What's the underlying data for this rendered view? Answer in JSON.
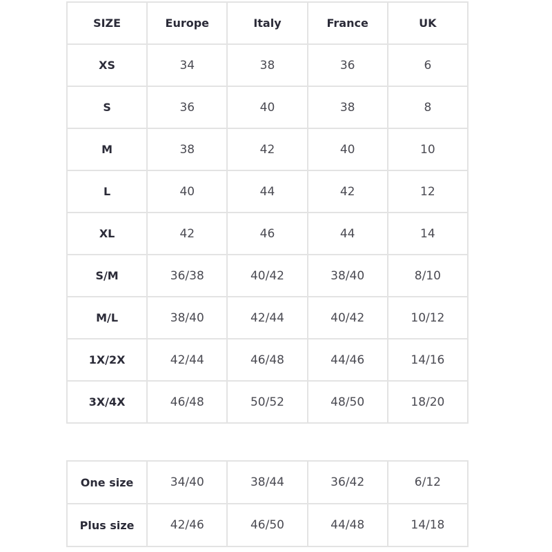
{
  "size_chart": {
    "headers": [
      "SIZE",
      "Europe",
      "Italy",
      "France",
      "UK"
    ],
    "rows": [
      [
        "XS",
        "34",
        "38",
        "36",
        "6"
      ],
      [
        "S",
        "36",
        "40",
        "38",
        "8"
      ],
      [
        "M",
        "38",
        "42",
        "40",
        "10"
      ],
      [
        "L",
        "40",
        "44",
        "42",
        "12"
      ],
      [
        "XL",
        "42",
        "46",
        "44",
        "14"
      ],
      [
        "S/M",
        "36/38",
        "40/42",
        "38/40",
        "8/10"
      ],
      [
        "M/L",
        "38/40",
        "42/44",
        "40/42",
        "10/12"
      ],
      [
        "1X/2X",
        "42/44",
        "46/48",
        "44/46",
        "14/16"
      ],
      [
        "3X/4X",
        "46/48",
        "50/52",
        "48/50",
        "18/20"
      ]
    ]
  },
  "special_sizes": {
    "rows": [
      [
        "One size",
        "34/40",
        "38/44",
        "36/42",
        "6/12"
      ],
      [
        "Plus size",
        "42/46",
        "46/50",
        "44/48",
        "14/18"
      ]
    ]
  }
}
